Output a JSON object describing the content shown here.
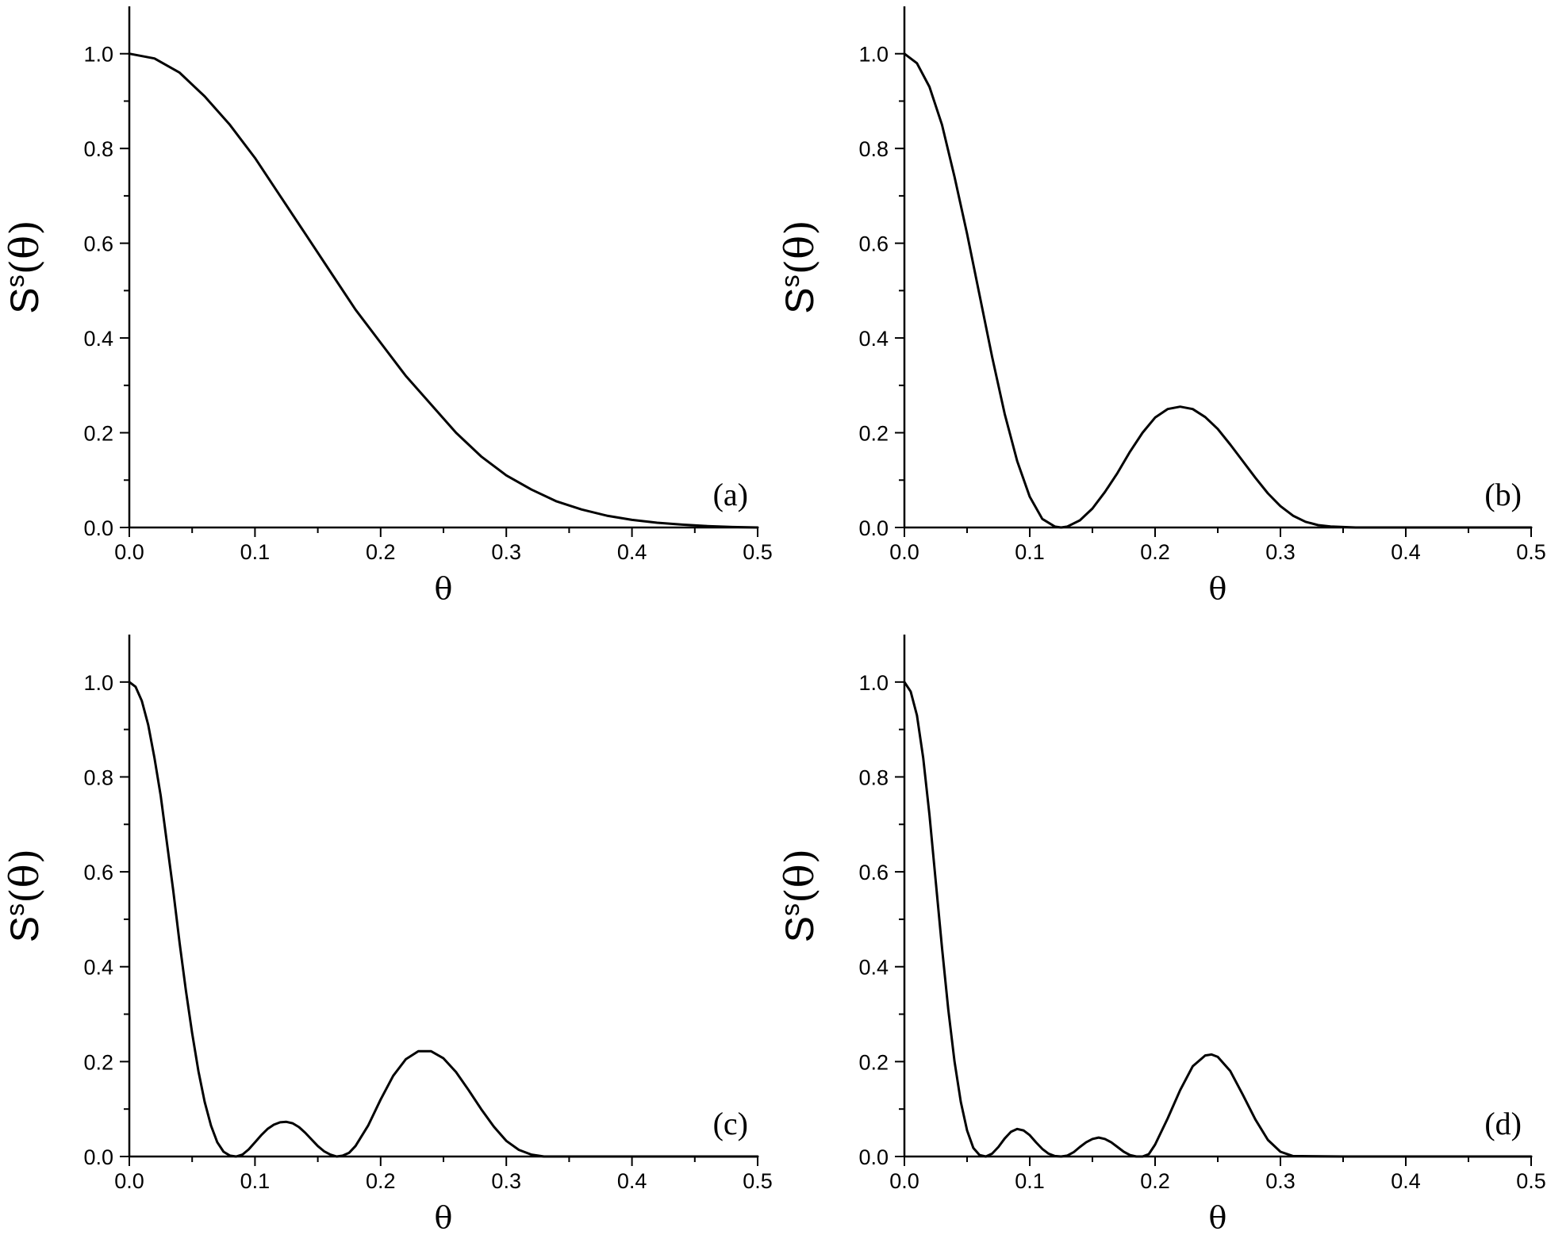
{
  "chart_data": [
    {
      "type": "line",
      "panel_label": "(a)",
      "xlabel": "θ",
      "ylabel_main": "S",
      "ylabel_sup": "s",
      "ylabel_arg": "(θ)",
      "xlim": [
        0,
        0.5
      ],
      "ylim": [
        0,
        1.1
      ],
      "xticks": [
        "0.0",
        "0.1",
        "0.2",
        "0.3",
        "0.4",
        "0.5"
      ],
      "yticks": [
        "0.0",
        "0.2",
        "0.4",
        "0.6",
        "0.8",
        "1.0"
      ],
      "x": [
        0,
        0.02,
        0.04,
        0.06,
        0.08,
        0.1,
        0.12,
        0.14,
        0.16,
        0.18,
        0.2,
        0.22,
        0.24,
        0.26,
        0.28,
        0.3,
        0.32,
        0.34,
        0.36,
        0.38,
        0.4,
        0.42,
        0.44,
        0.46,
        0.48,
        0.5
      ],
      "y": [
        1.0,
        0.99,
        0.96,
        0.91,
        0.85,
        0.78,
        0.7,
        0.62,
        0.54,
        0.46,
        0.39,
        0.32,
        0.26,
        0.2,
        0.15,
        0.11,
        0.08,
        0.055,
        0.038,
        0.025,
        0.016,
        0.01,
        0.006,
        0.003,
        0.001,
        0.0
      ]
    },
    {
      "type": "line",
      "panel_label": "(b)",
      "xlabel": "θ",
      "ylabel_main": "S",
      "ylabel_sup": "s",
      "ylabel_arg": "(θ)",
      "xlim": [
        0,
        0.5
      ],
      "ylim": [
        0,
        1.1
      ],
      "xticks": [
        "0.0",
        "0.1",
        "0.2",
        "0.3",
        "0.4",
        "0.5"
      ],
      "yticks": [
        "0.0",
        "0.2",
        "0.4",
        "0.6",
        "0.8",
        "1.0"
      ],
      "x": [
        0,
        0.01,
        0.02,
        0.03,
        0.04,
        0.05,
        0.06,
        0.07,
        0.08,
        0.09,
        0.1,
        0.11,
        0.12,
        0.125,
        0.13,
        0.14,
        0.15,
        0.16,
        0.17,
        0.18,
        0.19,
        0.2,
        0.21,
        0.22,
        0.23,
        0.24,
        0.25,
        0.26,
        0.27,
        0.28,
        0.29,
        0.3,
        0.31,
        0.32,
        0.33,
        0.34,
        0.35,
        0.36,
        0.4,
        0.45,
        0.5
      ],
      "y": [
        1.0,
        0.98,
        0.93,
        0.85,
        0.74,
        0.62,
        0.49,
        0.36,
        0.24,
        0.14,
        0.065,
        0.018,
        0.002,
        0.0,
        0.002,
        0.015,
        0.04,
        0.075,
        0.115,
        0.16,
        0.2,
        0.232,
        0.25,
        0.255,
        0.25,
        0.233,
        0.208,
        0.175,
        0.14,
        0.105,
        0.072,
        0.045,
        0.025,
        0.012,
        0.005,
        0.002,
        0.001,
        0.0,
        0.0,
        0.0,
        0.0
      ]
    },
    {
      "type": "line",
      "panel_label": "(c)",
      "xlabel": "θ",
      "ylabel_main": "S",
      "ylabel_sup": "s",
      "ylabel_arg": "(θ)",
      "xlim": [
        0,
        0.5
      ],
      "ylim": [
        0,
        1.1
      ],
      "xticks": [
        "0.0",
        "0.1",
        "0.2",
        "0.3",
        "0.4",
        "0.5"
      ],
      "yticks": [
        "0.0",
        "0.2",
        "0.4",
        "0.6",
        "0.8",
        "1.0"
      ],
      "x": [
        0,
        0.005,
        0.01,
        0.015,
        0.02,
        0.025,
        0.03,
        0.035,
        0.04,
        0.045,
        0.05,
        0.055,
        0.06,
        0.065,
        0.07,
        0.075,
        0.08,
        0.085,
        0.09,
        0.095,
        0.1,
        0.105,
        0.11,
        0.115,
        0.12,
        0.125,
        0.13,
        0.135,
        0.14,
        0.145,
        0.15,
        0.155,
        0.16,
        0.165,
        0.17,
        0.175,
        0.18,
        0.19,
        0.2,
        0.21,
        0.22,
        0.23,
        0.24,
        0.25,
        0.26,
        0.27,
        0.28,
        0.29,
        0.3,
        0.31,
        0.32,
        0.33,
        0.35,
        0.4,
        0.45,
        0.5
      ],
      "y": [
        1.0,
        0.99,
        0.96,
        0.91,
        0.84,
        0.76,
        0.66,
        0.56,
        0.45,
        0.35,
        0.26,
        0.18,
        0.115,
        0.065,
        0.03,
        0.01,
        0.002,
        0.0,
        0.004,
        0.015,
        0.03,
        0.045,
        0.058,
        0.067,
        0.072,
        0.073,
        0.07,
        0.062,
        0.05,
        0.036,
        0.022,
        0.011,
        0.004,
        0.0,
        0.002,
        0.008,
        0.022,
        0.065,
        0.12,
        0.17,
        0.205,
        0.222,
        0.222,
        0.207,
        0.178,
        0.14,
        0.1,
        0.063,
        0.033,
        0.014,
        0.004,
        0.0,
        0.0,
        0.0,
        0.0,
        0.0
      ]
    },
    {
      "type": "line",
      "panel_label": "(d)",
      "xlabel": "θ",
      "ylabel_main": "S",
      "ylabel_sup": "s",
      "ylabel_arg": "(θ)",
      "xlim": [
        0,
        0.5
      ],
      "ylim": [
        0,
        1.1
      ],
      "xticks": [
        "0.0",
        "0.1",
        "0.2",
        "0.3",
        "0.4",
        "0.5"
      ],
      "yticks": [
        "0.0",
        "0.2",
        "0.4",
        "0.6",
        "0.8",
        "1.0"
      ],
      "x": [
        0,
        0.005,
        0.01,
        0.015,
        0.02,
        0.025,
        0.03,
        0.035,
        0.04,
        0.045,
        0.05,
        0.055,
        0.06,
        0.065,
        0.07,
        0.075,
        0.08,
        0.085,
        0.09,
        0.095,
        0.1,
        0.105,
        0.11,
        0.115,
        0.12,
        0.125,
        0.13,
        0.135,
        0.14,
        0.145,
        0.15,
        0.155,
        0.16,
        0.165,
        0.17,
        0.175,
        0.18,
        0.185,
        0.19,
        0.195,
        0.2,
        0.21,
        0.22,
        0.23,
        0.24,
        0.245,
        0.25,
        0.26,
        0.27,
        0.28,
        0.29,
        0.3,
        0.31,
        0.35,
        0.4,
        0.45,
        0.5
      ],
      "y": [
        1.0,
        0.98,
        0.93,
        0.84,
        0.72,
        0.58,
        0.44,
        0.31,
        0.2,
        0.115,
        0.055,
        0.018,
        0.003,
        0.0,
        0.006,
        0.02,
        0.038,
        0.052,
        0.058,
        0.055,
        0.045,
        0.03,
        0.016,
        0.006,
        0.001,
        0.0,
        0.002,
        0.009,
        0.02,
        0.03,
        0.037,
        0.04,
        0.037,
        0.03,
        0.02,
        0.01,
        0.003,
        0.0,
        0.0,
        0.005,
        0.025,
        0.08,
        0.14,
        0.19,
        0.213,
        0.215,
        0.21,
        0.18,
        0.13,
        0.078,
        0.035,
        0.01,
        0.001,
        0.0,
        0.0,
        0.0,
        0.0
      ]
    }
  ]
}
